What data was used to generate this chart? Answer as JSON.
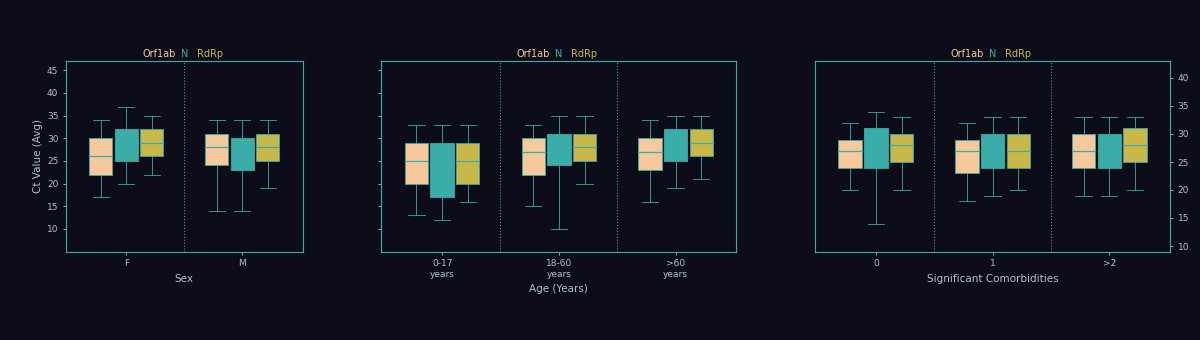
{
  "background_color": "#0d0d1a",
  "colors": {
    "peach": "#f5c99b",
    "teal": "#3aada8",
    "yellow": "#c8b84a"
  },
  "genes": [
    "Orf1ab",
    "N",
    "RdRp"
  ],
  "gene_colors": [
    "peach",
    "teal",
    "yellow"
  ],
  "text_color": "#aac4c8",
  "spine_color": "#3aada8",
  "panel1": {
    "xlabel": "Sex",
    "ylabel": "Ct Value (Avg)",
    "ylim": [
      5,
      47
    ],
    "yticks": [
      10,
      15,
      20,
      25,
      30,
      35,
      40,
      45
    ],
    "groups": [
      {
        "label": "F",
        "boxes": [
          {
            "median": 26,
            "q1": 22,
            "q3": 30,
            "whislo": 17,
            "whishi": 34
          },
          {
            "median": 28,
            "q1": 25,
            "q3": 32,
            "whislo": 20,
            "whishi": 37
          },
          {
            "median": 29,
            "q1": 26,
            "q3": 32,
            "whislo": 22,
            "whishi": 35
          }
        ]
      },
      {
        "label": "M",
        "boxes": [
          {
            "median": 28,
            "q1": 24,
            "q3": 31,
            "whislo": 14,
            "whishi": 34
          },
          {
            "median": 27,
            "q1": 23,
            "q3": 30,
            "whislo": 14,
            "whishi": 34
          },
          {
            "median": 28,
            "q1": 25,
            "q3": 31,
            "whislo": 19,
            "whishi": 34
          }
        ]
      }
    ]
  },
  "panel2": {
    "xlabel": "Age (Years)",
    "ylim": [
      5,
      47
    ],
    "yticks": [
      10,
      15,
      20,
      25,
      30,
      35,
      40,
      45
    ],
    "groups": [
      {
        "label": "0-17\nyears",
        "boxes": [
          {
            "median": 25,
            "q1": 20,
            "q3": 29,
            "whislo": 13,
            "whishi": 33
          },
          {
            "median": 24,
            "q1": 17,
            "q3": 29,
            "whislo": 12,
            "whishi": 33
          },
          {
            "median": 25,
            "q1": 20,
            "q3": 29,
            "whislo": 16,
            "whishi": 33
          }
        ]
      },
      {
        "label": "18-60\nyears",
        "boxes": [
          {
            "median": 27,
            "q1": 22,
            "q3": 30,
            "whislo": 15,
            "whishi": 33
          },
          {
            "median": 28,
            "q1": 24,
            "q3": 31,
            "whislo": 10,
            "whishi": 35
          },
          {
            "median": 28,
            "q1": 25,
            "q3": 31,
            "whislo": 20,
            "whishi": 35
          }
        ]
      },
      {
        "label": ">60\nyears",
        "boxes": [
          {
            "median": 27,
            "q1": 23,
            "q3": 30,
            "whislo": 16,
            "whishi": 34
          },
          {
            "median": 28,
            "q1": 25,
            "q3": 32,
            "whislo": 19,
            "whishi": 35
          },
          {
            "median": 29,
            "q1": 26,
            "q3": 32,
            "whislo": 21,
            "whishi": 35
          }
        ]
      }
    ]
  },
  "panel3": {
    "xlabel": "Significant Comorbidities",
    "ylim": [
      9,
      43
    ],
    "yticks": [
      10,
      15,
      20,
      25,
      30,
      35,
      40
    ],
    "groups": [
      {
        "label": "0",
        "boxes": [
          {
            "median": 27,
            "q1": 24,
            "q3": 29,
            "whislo": 20,
            "whishi": 32
          },
          {
            "median": 28,
            "q1": 24,
            "q3": 31,
            "whislo": 14,
            "whishi": 34
          },
          {
            "median": 28,
            "q1": 25,
            "q3": 30,
            "whislo": 20,
            "whishi": 33
          }
        ]
      },
      {
        "label": "1",
        "boxes": [
          {
            "median": 27,
            "q1": 23,
            "q3": 29,
            "whislo": 18,
            "whishi": 32
          },
          {
            "median": 27,
            "q1": 24,
            "q3": 30,
            "whislo": 19,
            "whishi": 33
          },
          {
            "median": 27,
            "q1": 24,
            "q3": 30,
            "whislo": 20,
            "whishi": 33
          }
        ]
      },
      {
        "label": ">2",
        "boxes": [
          {
            "median": 27,
            "q1": 24,
            "q3": 30,
            "whislo": 19,
            "whishi": 33
          },
          {
            "median": 27,
            "q1": 24,
            "q3": 30,
            "whislo": 19,
            "whishi": 33
          },
          {
            "median": 28,
            "q1": 25,
            "q3": 31,
            "whislo": 20,
            "whishi": 33
          }
        ]
      }
    ]
  }
}
